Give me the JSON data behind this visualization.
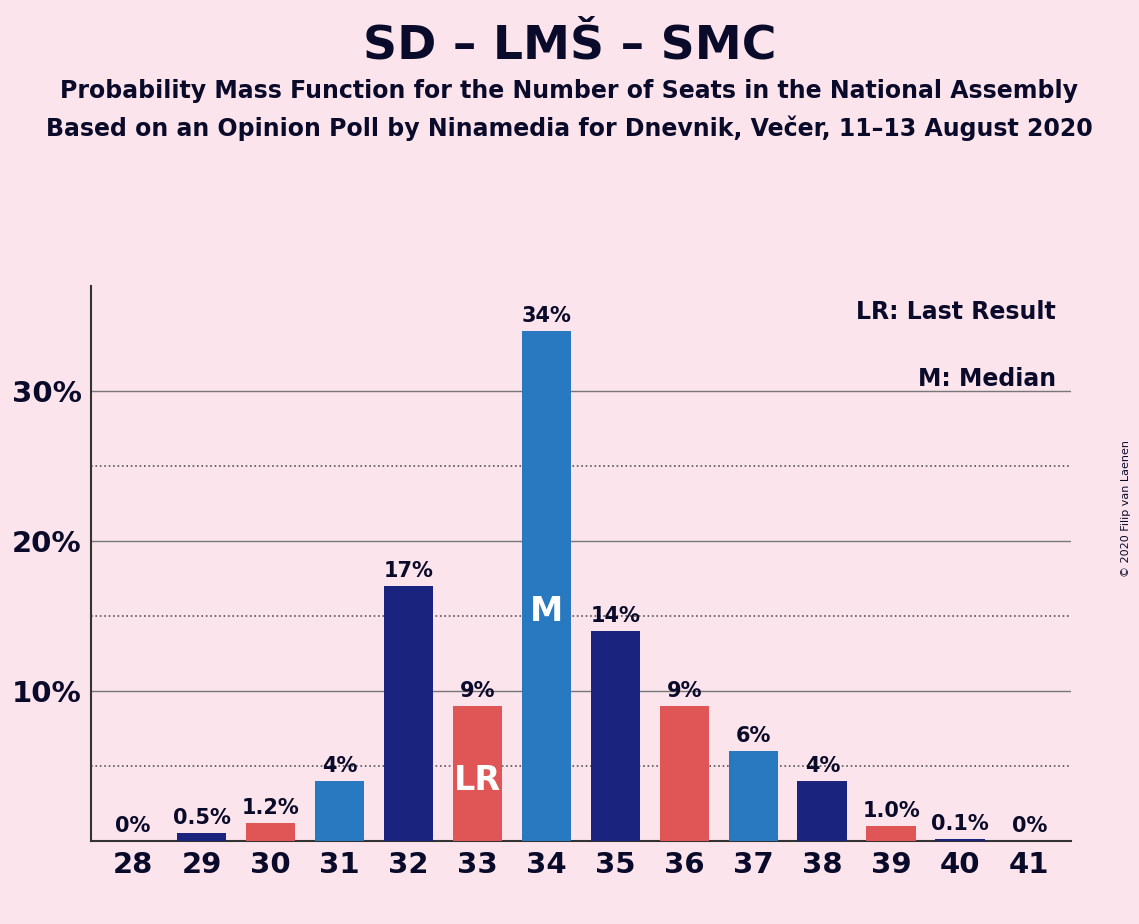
{
  "title": "SD – LMŠ – SMC",
  "subtitle1": "Probability Mass Function for the Number of Seats in the National Assembly",
  "subtitle2": "Based on an Opinion Poll by Ninamedia for Dnevnik, Večer, 11–13 August 2020",
  "copyright": "© 2020 Filip van Laenen",
  "legend1": "LR: Last Result",
  "legend2": "M: Median",
  "seats": [
    28,
    29,
    30,
    31,
    32,
    33,
    34,
    35,
    36,
    37,
    38,
    39,
    40,
    41
  ],
  "values": [
    0.0,
    0.5,
    1.2,
    4.0,
    17.0,
    9.0,
    34.0,
    14.0,
    9.0,
    6.0,
    4.0,
    1.0,
    0.1,
    0.0
  ],
  "labels": [
    "0%",
    "0.5%",
    "1.2%",
    "4%",
    "17%",
    "9%",
    "34%",
    "14%",
    "9%",
    "6%",
    "4%",
    "1.0%",
    "0.1%",
    "0%"
  ],
  "bar_colors": [
    "#1a237e",
    "#1a237e",
    "#e05555",
    "#2979c0",
    "#1a237e",
    "#e05555",
    "#2979c0",
    "#1a237e",
    "#e05555",
    "#2979c0",
    "#1a237e",
    "#e05555",
    "#1a237e",
    "#1a237e"
  ],
  "bar_annotations": [
    "",
    "",
    "",
    "",
    "",
    "LR",
    "M",
    "",
    "",
    "",
    "",
    "",
    "",
    ""
  ],
  "background_color": "#fce4ec",
  "ylim": [
    0,
    37
  ],
  "yticks": [
    0,
    10,
    20,
    30
  ],
  "ytick_labels": [
    "",
    "10%",
    "20%",
    "30%"
  ],
  "dotted_yticks": [
    5,
    15,
    25
  ],
  "title_fontsize": 34,
  "subtitle_fontsize": 17,
  "bar_label_fontsize": 15,
  "annotation_fontsize": 24,
  "axis_label_fontsize": 21
}
